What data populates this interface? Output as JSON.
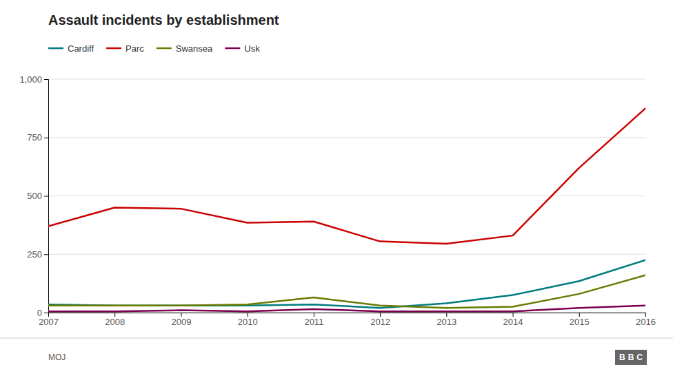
{
  "chart_data": {
    "type": "line",
    "title": "Assault incidents by establishment",
    "x": [
      2007,
      2008,
      2009,
      2010,
      2011,
      2012,
      2013,
      2014,
      2015,
      2016
    ],
    "series": [
      {
        "name": "Cardiff",
        "color": "#007b7f",
        "values": [
          35,
          30,
          30,
          30,
          35,
          20,
          40,
          75,
          135,
          225
        ]
      },
      {
        "name": "Parc",
        "color": "#cc0000",
        "values": [
          370,
          450,
          445,
          385,
          390,
          305,
          295,
          330,
          620,
          875
        ]
      },
      {
        "name": "Swansea",
        "color": "#6b7a00",
        "values": [
          30,
          30,
          30,
          35,
          65,
          30,
          20,
          25,
          80,
          160
        ]
      },
      {
        "name": "Usk",
        "color": "#7b0050",
        "values": [
          5,
          5,
          10,
          5,
          15,
          5,
          5,
          5,
          20,
          30
        ]
      }
    ],
    "xlim": [
      2007,
      2016
    ],
    "xticks": [
      2007,
      2008,
      2009,
      2010,
      2011,
      2012,
      2013,
      2014,
      2015,
      2016
    ],
    "ylim": [
      0,
      1000
    ],
    "yticks": [
      0,
      250,
      500,
      750,
      {
        "value": 1000,
        "label": "1,000"
      }
    ],
    "grid": true,
    "legend": "top-left",
    "annotations": [
      "MOJ",
      "BBC"
    ]
  }
}
